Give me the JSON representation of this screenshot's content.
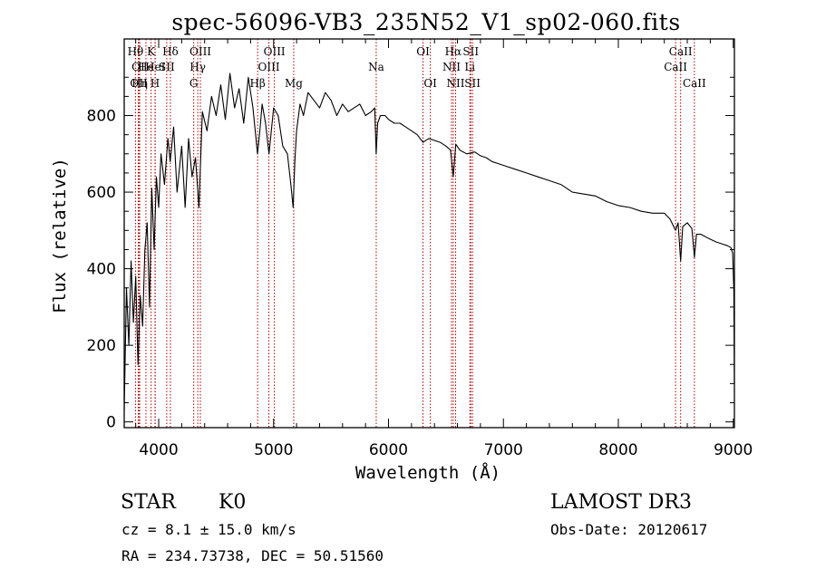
{
  "chart_data": {
    "type": "line",
    "title": "spec-56096-VB3_235N52_V1_sp02-060.fits",
    "xlabel": "Wavelength (Å)",
    "ylabel": "Flux (relative)",
    "xlim": [
      3700,
      9010
    ],
    "ylim": [
      -15,
      1000
    ],
    "xticks": [
      4000,
      5000,
      6000,
      7000,
      8000,
      9000
    ],
    "yticks": [
      0,
      200,
      400,
      600,
      800
    ],
    "grid": false,
    "series": [
      {
        "name": "spectrum",
        "color": "#000000",
        "x": [
          3700,
          3720,
          3740,
          3760,
          3780,
          3800,
          3820,
          3840,
          3860,
          3880,
          3900,
          3920,
          3940,
          3960,
          3980,
          4000,
          4020,
          4050,
          4080,
          4100,
          4130,
          4160,
          4200,
          4230,
          4260,
          4290,
          4320,
          4350,
          4380,
          4420,
          4460,
          4500,
          4540,
          4580,
          4620,
          4660,
          4700,
          4740,
          4780,
          4820,
          4860,
          4880,
          4900,
          4930,
          4960,
          5000,
          5040,
          5080,
          5120,
          5150,
          5170,
          5185,
          5200,
          5230,
          5260,
          5300,
          5350,
          5400,
          5450,
          5500,
          5550,
          5600,
          5650,
          5700,
          5750,
          5800,
          5850,
          5880,
          5893,
          5905,
          5930,
          5970,
          6000,
          6050,
          6100,
          6150,
          6200,
          6250,
          6300,
          6350,
          6400,
          6450,
          6500,
          6540,
          6563,
          6585,
          6620,
          6680,
          6750,
          6800,
          6850,
          6900,
          6950,
          7000,
          7100,
          7200,
          7300,
          7400,
          7500,
          7600,
          7700,
          7800,
          7900,
          8000,
          8100,
          8200,
          8300,
          8400,
          8450,
          8498,
          8520,
          8542,
          8560,
          8600,
          8640,
          8662,
          8680,
          8720,
          8780,
          8850,
          8900,
          8950,
          8980,
          8995,
          9005,
          9010
        ],
        "y": [
          30,
          350,
          200,
          420,
          260,
          380,
          150,
          330,
          250,
          450,
          520,
          300,
          610,
          450,
          640,
          560,
          700,
          620,
          740,
          680,
          770,
          600,
          720,
          560,
          740,
          640,
          690,
          560,
          810,
          760,
          850,
          800,
          880,
          790,
          910,
          820,
          870,
          780,
          900,
          820,
          700,
          760,
          830,
          780,
          700,
          820,
          800,
          720,
          700,
          620,
          560,
          680,
          760,
          830,
          800,
          860,
          840,
          820,
          860,
          840,
          800,
          830,
          810,
          820,
          830,
          800,
          810,
          820,
          700,
          780,
          800,
          800,
          790,
          780,
          780,
          770,
          760,
          750,
          730,
          740,
          735,
          730,
          720,
          710,
          640,
          725,
          710,
          700,
          705,
          695,
          690,
          680,
          675,
          670,
          660,
          650,
          640,
          630,
          620,
          600,
          595,
          590,
          575,
          565,
          560,
          550,
          545,
          545,
          530,
          500,
          520,
          420,
          510,
          520,
          505,
          430,
          490,
          490,
          480,
          470,
          465,
          460,
          455,
          440,
          340,
          100
        ]
      }
    ],
    "annotations": [
      {
        "label": "Hθ",
        "x": 3798,
        "row": 1
      },
      {
        "label": "OI",
        "x": 3822,
        "row": 2
      },
      {
        "label": "OII",
        "x": 3827,
        "row": 3
      },
      {
        "label": "He",
        "x": 3889,
        "row": 2
      },
      {
        "label": "Hη",
        "x": 3835,
        "row": 3
      },
      {
        "label": "K",
        "x": 3934,
        "row": 1
      },
      {
        "label": "HeI",
        "x": 3970,
        "row": 2
      },
      {
        "label": "H",
        "x": 3968,
        "row": 3
      },
      {
        "label": "Hδ",
        "x": 4102,
        "row": 1
      },
      {
        "label": "SII",
        "x": 4070,
        "row": 2
      },
      {
        "label": "OIII",
        "x": 4363,
        "row": 1
      },
      {
        "label": "Hγ",
        "x": 4340,
        "row": 2
      },
      {
        "label": "G",
        "x": 4305,
        "row": 3
      },
      {
        "label": "OIII",
        "x": 5007,
        "row": 1
      },
      {
        "label": "OIII",
        "x": 4959,
        "row": 2
      },
      {
        "label": "Hβ",
        "x": 4861,
        "row": 3
      },
      {
        "label": "Mg",
        "x": 5175,
        "row": 3
      },
      {
        "label": "Na",
        "x": 5893,
        "row": 2
      },
      {
        "label": "OI",
        "x": 6300,
        "row": 1
      },
      {
        "label": "OI",
        "x": 6364,
        "row": 3
      },
      {
        "label": "Hα",
        "x": 6563,
        "row": 1
      },
      {
        "label": "NII",
        "x": 6548,
        "row": 2
      },
      {
        "label": "NII",
        "x": 6584,
        "row": 3
      },
      {
        "label": "SII",
        "x": 6716,
        "row": 1
      },
      {
        "label": "Li",
        "x": 6708,
        "row": 2
      },
      {
        "label": "SII",
        "x": 6731,
        "row": 3
      },
      {
        "label": "CaII",
        "x": 8542,
        "row": 1
      },
      {
        "label": "CaII",
        "x": 8498,
        "row": 2
      },
      {
        "label": "CaII",
        "x": 8662,
        "row": 3
      }
    ]
  },
  "info": {
    "class_label": "STAR",
    "subclass": "K0",
    "survey": "LAMOST DR3",
    "redshift": "cz = 8.1 ± 15.0 km/s",
    "obs_date": "Obs-Date: 20120617",
    "coords": "RA = 234.73738, DEC =  50.51560"
  },
  "colors": {
    "line": "#000000",
    "marker": "#aa0000",
    "background": "#ffffff"
  }
}
